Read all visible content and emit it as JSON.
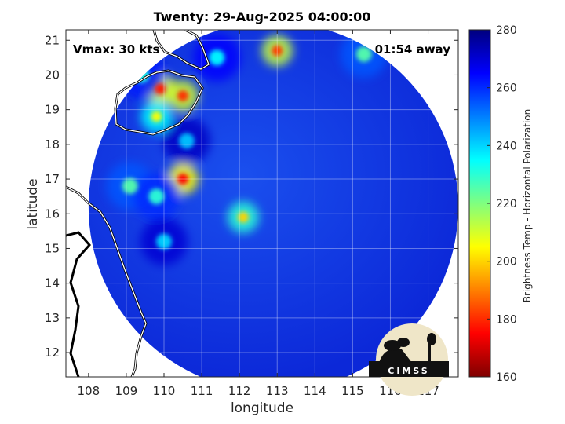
{
  "title": "Twenty: 29-Aug-2025 04:00:00",
  "xlabel": "longitude",
  "ylabel": "latitude",
  "colorbar_label": "Brightness Temp - Horizontal Polarization",
  "vmax_text": "Vmax: 30 kts",
  "away_text": "01:54 away",
  "logo_text": "CIMSS",
  "chart_data": {
    "type": "heatmap",
    "title": "Twenty: 29-Aug-2025 04:00:00",
    "xlabel": "longitude",
    "ylabel": "latitude",
    "xlim": [
      107.4,
      117.8
    ],
    "ylim": [
      11.3,
      21.3
    ],
    "xticks": [
      108,
      109,
      110,
      111,
      112,
      113,
      114,
      115,
      116,
      117
    ],
    "yticks": [
      12,
      13,
      14,
      15,
      16,
      17,
      18,
      19,
      20,
      21
    ],
    "colorbar": {
      "label": "Brightness Temp - Horizontal Polarization",
      "min": 160,
      "max": 280,
      "ticks": [
        160,
        180,
        200,
        220,
        240,
        260,
        280
      ],
      "colormap": "jet-reversed"
    },
    "grid": true,
    "storm_center": [
      112.3,
      16.7
    ],
    "swath_center": [
      112.9,
      16.2
    ],
    "swath_radius_deg": 4.9,
    "hot_spots": [
      {
        "lon": 110.5,
        "lat": 17.0,
        "value": 175
      },
      {
        "lon": 112.1,
        "lat": 15.9,
        "value": 200
      },
      {
        "lon": 109.9,
        "lat": 19.6,
        "value": 178
      },
      {
        "lon": 110.5,
        "lat": 19.4,
        "value": 180
      },
      {
        "lon": 109.8,
        "lat": 18.8,
        "value": 205
      },
      {
        "lon": 113.0,
        "lat": 20.7,
        "value": 182
      },
      {
        "lon": 109.1,
        "lat": 16.8,
        "value": 225
      },
      {
        "lon": 109.8,
        "lat": 16.5,
        "value": 230
      },
      {
        "lon": 109.4,
        "lat": 20.0,
        "value": 232
      },
      {
        "lon": 111.4,
        "lat": 20.5,
        "value": 235
      },
      {
        "lon": 115.3,
        "lat": 20.6,
        "value": 225
      },
      {
        "lon": 110.0,
        "lat": 15.2,
        "value": 240
      },
      {
        "lon": 110.6,
        "lat": 18.1,
        "value": 242
      }
    ]
  }
}
